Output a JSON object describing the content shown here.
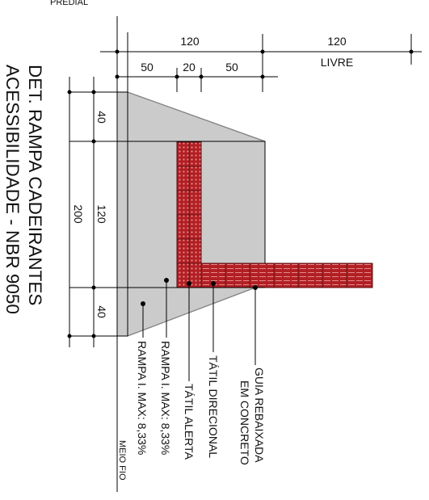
{
  "header": {
    "top_label": "PREDIAL"
  },
  "title": {
    "line1": "DET. RAMPA CADEIRANTES",
    "line2": "ACESSIBILIDADE - NBR 9050"
  },
  "dimensions_top": {
    "total_ramp": "120",
    "total_free": "120",
    "free_label": "LIVRE",
    "seg1": "50",
    "seg2": "20",
    "seg3": "50"
  },
  "dimensions_left": {
    "top": "40",
    "middle": "120",
    "bottom": "40",
    "total": "200"
  },
  "callouts": {
    "ramp_lower": "RAMPA I. MAX: 8,33%",
    "ramp_upper": "RAMPA I. MAX: 8,33%",
    "tactile_alert": "TÁTIL ALERTA",
    "tactile_directional": "TÁTIL DIRECIONAL",
    "curb_line1": "GUIA REBAIXADA",
    "curb_line2": "EM CONCRETO",
    "meio_fio": "MEIO FIO"
  },
  "colors": {
    "ramp_fill": "#cbcbcb",
    "tactile_fill": "#b21f24",
    "tactile_pattern": "#e58b8b",
    "line": "#000000"
  }
}
